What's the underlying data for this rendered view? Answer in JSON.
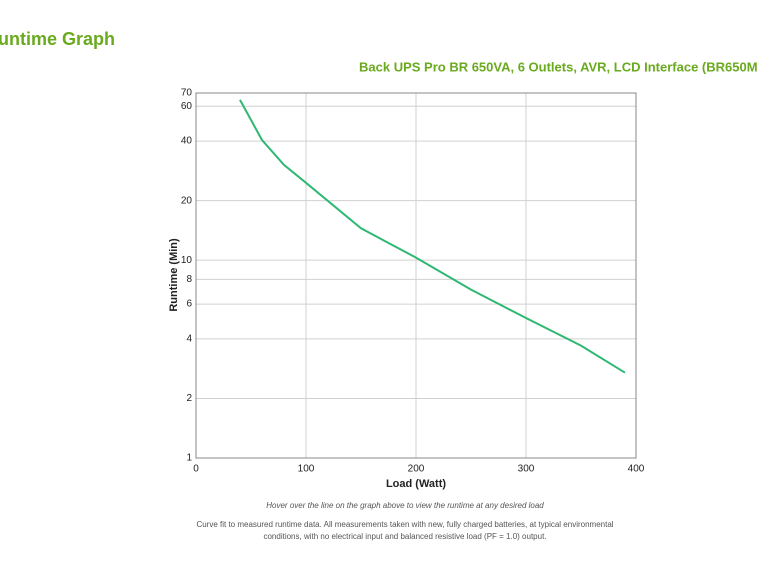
{
  "chart_data": {
    "type": "line",
    "title": "untime Graph",
    "subtitle": "Back UPS Pro BR 650VA, 6 Outlets, AVR, LCD Interface (BR650M",
    "x_label": "Load (Watt)",
    "y_label": "Runtime (Min)",
    "x": [
      40,
      60,
      80,
      100,
      150,
      200,
      250,
      300,
      350,
      390
    ],
    "values": [
      64.6,
      40.5,
      30.3,
      24.6,
      14.5,
      10.3,
      7.1,
      5.1,
      3.7,
      2.7
    ],
    "color": "#2eb872",
    "xlim": [
      0,
      400
    ],
    "xticks": [
      0,
      100,
      200,
      300,
      400
    ],
    "ylim": [
      1,
      70
    ],
    "yticks": [
      1,
      2,
      4,
      6,
      8,
      10,
      20,
      40,
      60,
      70
    ],
    "log_y": true,
    "grid": true,
    "hint": "Hover over the line on the graph above to view the runtime at any desired load",
    "footnote": [
      "Curve fit to measured runtime data. All measurements taken with new, fully charged batteries, at typical environmental",
      "conditions, with no electrical input and balanced resistive load (PF = 1.0) output."
    ]
  }
}
